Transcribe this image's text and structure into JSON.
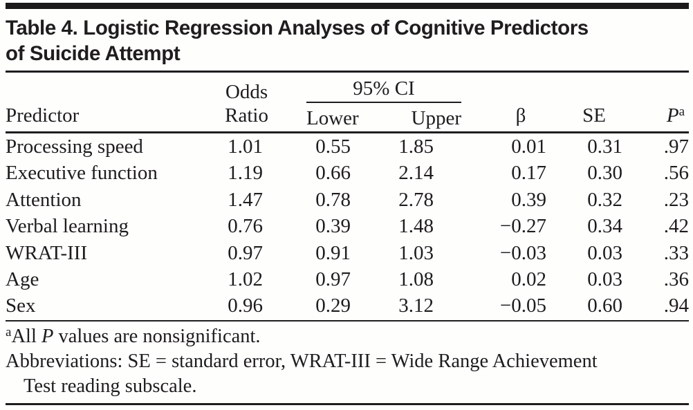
{
  "title": {
    "line1": "Table 4. Logistic Regression Analyses of Cognitive Predictors",
    "line2": "of Suicide Attempt"
  },
  "header": {
    "predictor": "Predictor",
    "odds_ratio_line1": "Odds",
    "odds_ratio_line2": "Ratio",
    "ci_group": "95% CI",
    "ci_lower": "Lower",
    "ci_upper": "Upper",
    "beta": "β",
    "se": "SE",
    "p": "P",
    "p_superscript": "a"
  },
  "table": {
    "rows": [
      {
        "predictor": "Processing speed",
        "odds_ratio": "1.01",
        "lower": "0.55",
        "upper": "1.85",
        "beta": "0.01",
        "se": "0.31",
        "p": ".97"
      },
      {
        "predictor": "Executive function",
        "odds_ratio": "1.19",
        "lower": "0.66",
        "upper": "2.14",
        "beta": "0.17",
        "se": "0.30",
        "p": ".56"
      },
      {
        "predictor": "Attention",
        "odds_ratio": "1.47",
        "lower": "0.78",
        "upper": "2.78",
        "beta": "0.39",
        "se": "0.32",
        "p": ".23"
      },
      {
        "predictor": "Verbal learning",
        "odds_ratio": "0.76",
        "lower": "0.39",
        "upper": "1.48",
        "beta": "−0.27",
        "se": "0.34",
        "p": ".42"
      },
      {
        "predictor": "WRAT-III",
        "odds_ratio": "0.97",
        "lower": "0.91",
        "upper": "1.03",
        "beta": "−0.03",
        "se": "0.03",
        "p": ".33"
      },
      {
        "predictor": "Age",
        "odds_ratio": "1.02",
        "lower": "0.97",
        "upper": "1.08",
        "beta": "0.02",
        "se": "0.03",
        "p": ".36"
      },
      {
        "predictor": "Sex",
        "odds_ratio": "0.96",
        "lower": "0.29",
        "upper": "3.12",
        "beta": "−0.05",
        "se": "0.60",
        "p": ".94"
      }
    ]
  },
  "footnotes": {
    "note1_marker": "a",
    "note1_prefix": "All ",
    "note1_italic": "P",
    "note1_suffix": " values are nonsignificant.",
    "note2_line1": "Abbreviations: SE = standard error, WRAT-III = Wide Range Achievement",
    "note2_line2": "Test reading subscale."
  },
  "colors": {
    "text": "#1e1c1d",
    "rule": "#1b191a",
    "background": "#fefefd"
  }
}
